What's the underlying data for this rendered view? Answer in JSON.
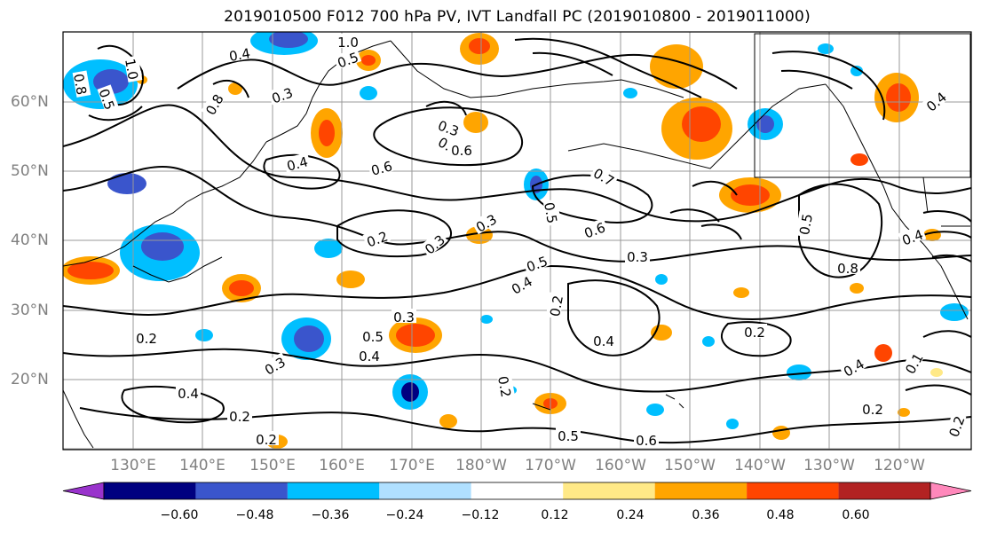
{
  "title": "2019010500 F012 700 hPa PV, IVT Landfall PC (2019010800 - 2019011000)",
  "lat_labels": [
    "60°N",
    "50°N",
    "40°N",
    "30°N",
    "20°N"
  ],
  "lon_labels": [
    "130°E",
    "140°E",
    "150°E",
    "160°E",
    "170°E",
    "180°W",
    "170°W",
    "160°W",
    "150°W",
    "140°W",
    "130°W",
    "120°W"
  ],
  "contour_labels": [
    "1.0",
    "0.4",
    "0.8",
    "0.5",
    "1.0",
    "0.8",
    "0.5",
    "0.3",
    "0.6",
    "0.4",
    "0.3",
    "0.4",
    "0.6",
    "0.2",
    "0.3",
    "0.3",
    "0.5",
    "0.4",
    "0.6",
    "0.7",
    "0.5",
    "0.2",
    "0.4",
    "0.3",
    "0.2",
    "0.5",
    "0.6",
    "0.3",
    "0.4",
    "0.2",
    "0.2",
    "0.2",
    "0.4",
    "0.5",
    "0.2",
    "0.3",
    "0.4",
    "0.2",
    "0.1",
    "0.2",
    "0.5",
    "0.8",
    "0.4",
    "0.4"
  ],
  "colorbar": {
    "ticks": [
      "−0.60",
      "−0.48",
      "−0.36",
      "−0.24",
      "−0.12",
      "0.12",
      "0.24",
      "0.36",
      "0.48",
      "0.60"
    ],
    "colors": [
      "#9933cc",
      "#000080",
      "#3a55cc",
      "#00bfff",
      "#b0e0ff",
      "#ffffff",
      "#ffe987",
      "#ffa500",
      "#ff4500",
      "#b22222",
      "#ff88bb"
    ]
  },
  "colors": {
    "land_outline": "#000000",
    "grid": "#999999",
    "contour": "#000000"
  }
}
